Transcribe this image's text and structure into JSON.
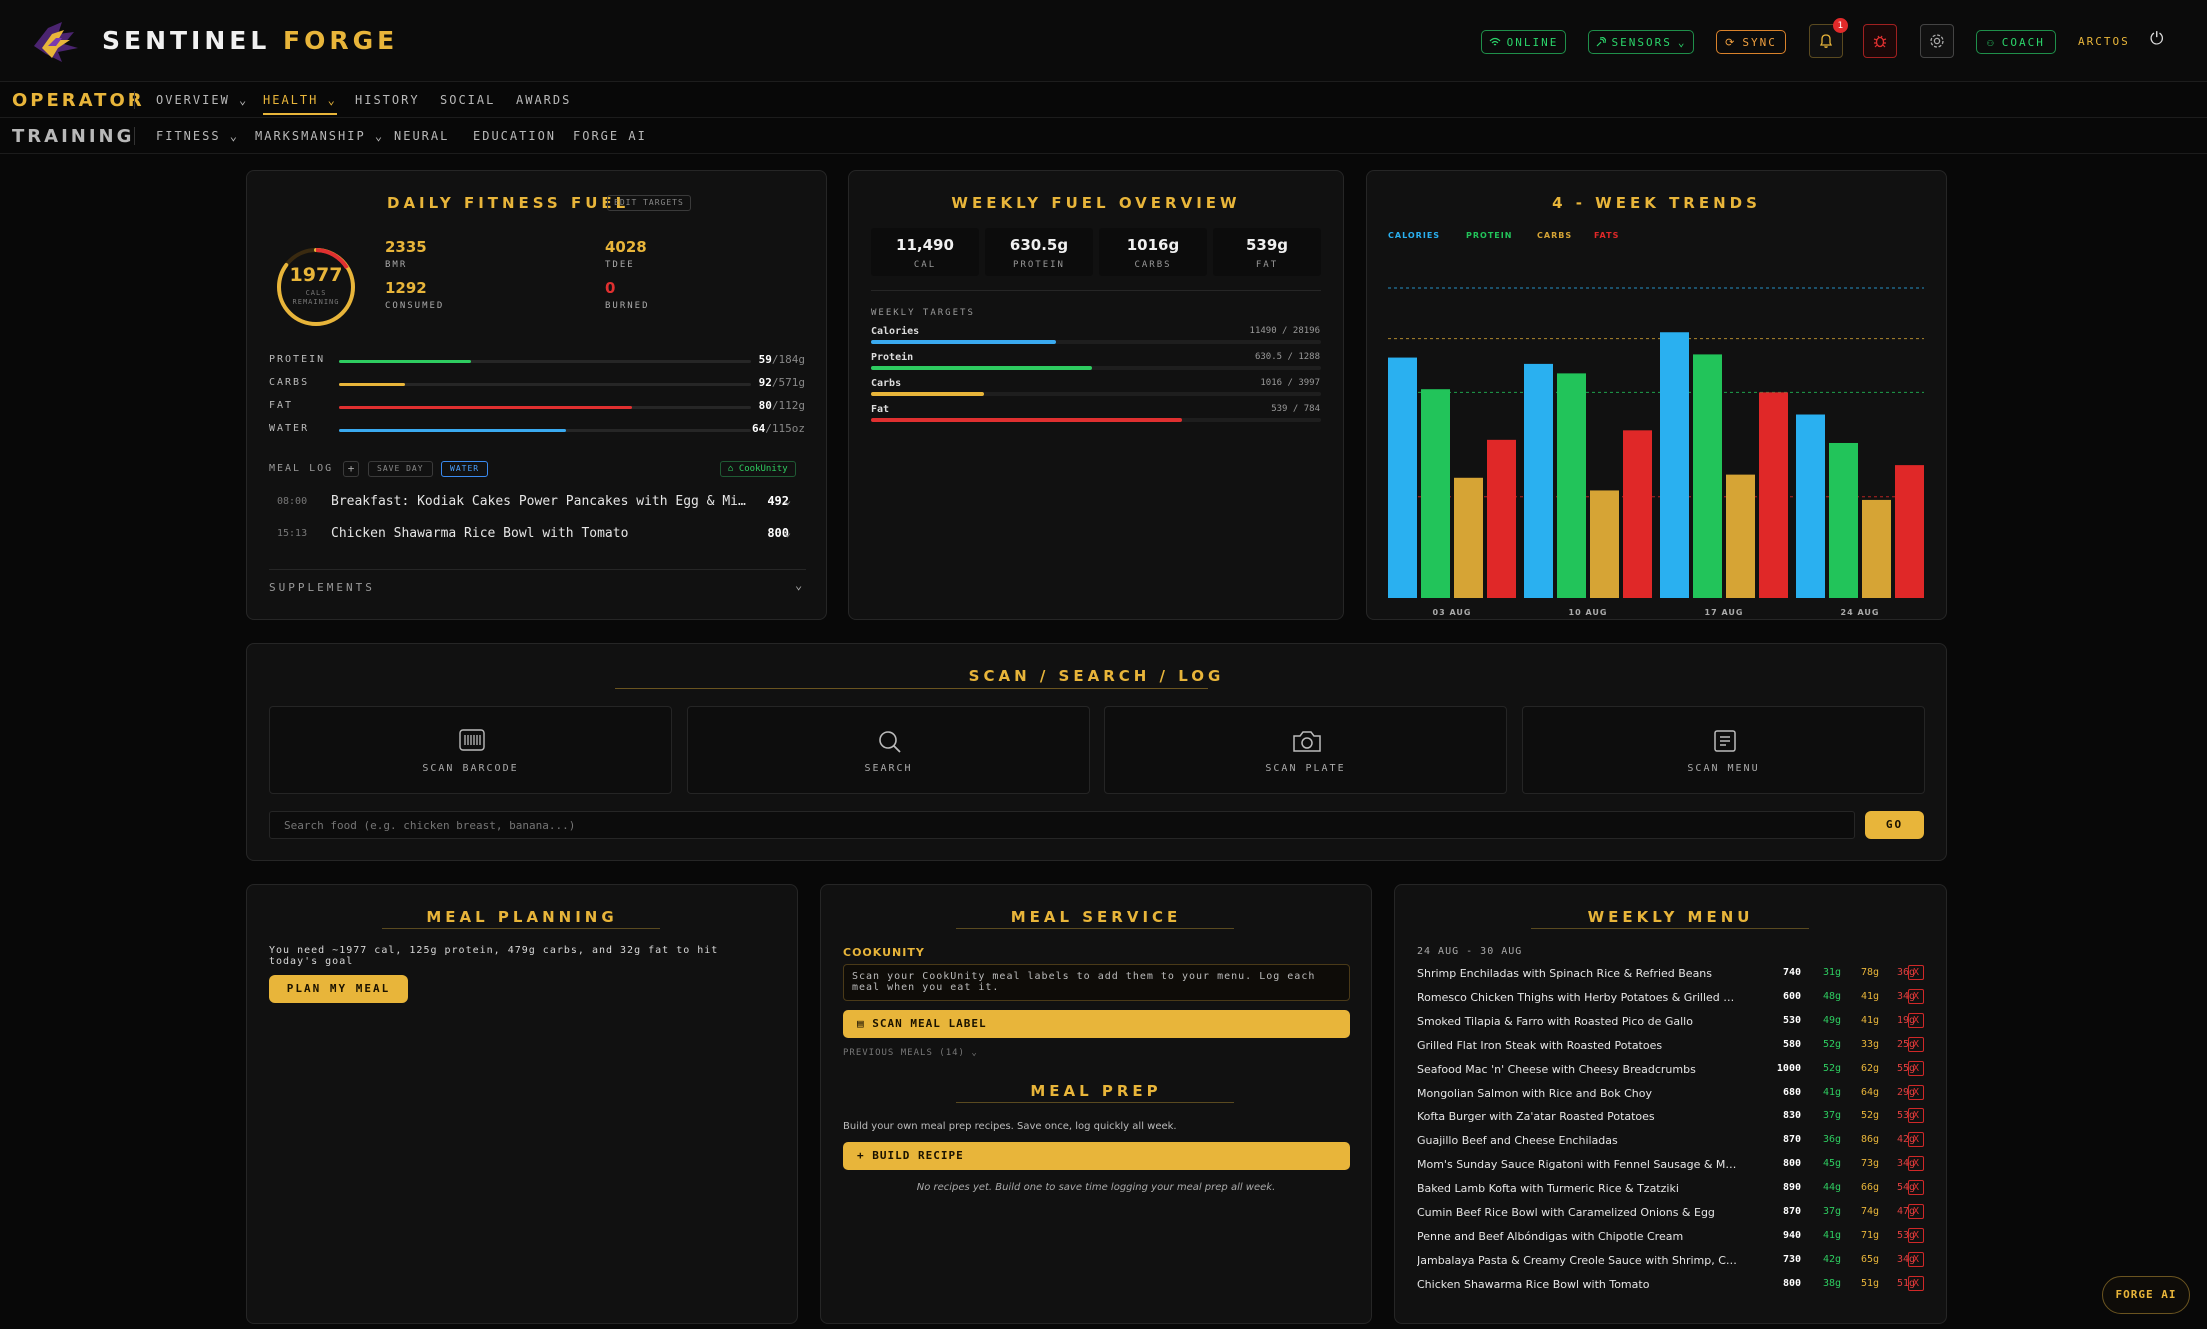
{
  "app": {
    "brand_a": "SENTINEL",
    "brand_b": "FORGE",
    "online": "ONLINE",
    "sensors": "SENSORS",
    "sync": "SYNC",
    "notif_count": "1",
    "coach": "COACH",
    "user": "ARCTOS"
  },
  "nav1": {
    "label": "OPERATOR",
    "items": [
      "OVERVIEW",
      "HEALTH",
      "HISTORY",
      "SOCIAL",
      "AWARDS"
    ],
    "active": "HEALTH"
  },
  "nav2": {
    "label": "TRAINING",
    "items": [
      "FITNESS",
      "MARKSMANSHIP",
      "NEURAL",
      "EDUCATION",
      "FORGE AI"
    ]
  },
  "daily": {
    "title": "DAILY FITNESS FUEL",
    "edit": "EDIT TARGETS",
    "remaining": "1977",
    "remaining_label": "CALS REMAINING",
    "ring_fraction": 0.85,
    "stats": [
      {
        "v": "2335",
        "l": "BMR",
        "color": "#e8b53a"
      },
      {
        "v": "4028",
        "l": "TDEE",
        "color": "#e8b53a"
      },
      {
        "v": "1292",
        "l": "CONSUMED",
        "color": "#e8b53a"
      },
      {
        "v": "0",
        "l": "BURNED",
        "color": "#e03030"
      }
    ],
    "macros": [
      {
        "l": "PROTEIN",
        "v": "59",
        "t": "/184g",
        "f": 0.32,
        "color": "#2ecc60"
      },
      {
        "l": "CARBS",
        "v": "92",
        "t": "/571g",
        "f": 0.16,
        "color": "#e8b53a"
      },
      {
        "l": "FAT",
        "v": "80",
        "t": "/112g",
        "f": 0.71,
        "color": "#e03030"
      },
      {
        "l": "WATER",
        "v": "64",
        "t": "/115oz",
        "f": 0.55,
        "color": "#3aaaf0"
      }
    ],
    "meal_log": "MEAL LOG",
    "add": "+",
    "save_day": "SAVE DAY",
    "water": "WATER",
    "cookunity": "CookUnity",
    "meals": [
      {
        "t": "08:00",
        "n": "Breakfast: Kodiak Cakes Power Pancakes with Egg & Mi…",
        "c": "492"
      },
      {
        "t": "15:13",
        "n": "Chicken Shawarma Rice Bowl with Tomato",
        "c": "800"
      }
    ],
    "supplements": "SUPPLEMENTS"
  },
  "weekly": {
    "title": "WEEKLY FUEL OVERVIEW",
    "totals": [
      {
        "v": "11,490",
        "l": "CAL"
      },
      {
        "v": "630.5g",
        "l": "PROTEIN"
      },
      {
        "v": "1016g",
        "l": "CARBS"
      },
      {
        "v": "539g",
        "l": "FAT"
      }
    ],
    "targets_label": "WEEKLY TARGETS",
    "targets": [
      {
        "l": "Calories",
        "r": "11490 / 28196",
        "f": 0.41,
        "color": "#3aaaf0"
      },
      {
        "l": "Protein",
        "r": "630.5 / 1288",
        "f": 0.49,
        "color": "#2ecc60"
      },
      {
        "l": "Carbs",
        "r": "1016 / 3997",
        "f": 0.25,
        "color": "#e8b53a"
      },
      {
        "l": "Fat",
        "r": "539 / 784",
        "f": 0.69,
        "color": "#e03030"
      }
    ]
  },
  "chart_data": {
    "type": "bar",
    "title": "4 - WEEK TRENDS",
    "categories": [
      "03 AUG",
      "10 AUG",
      "17 AUG",
      "24 AUG"
    ],
    "series": [
      {
        "name": "CALORIES",
        "values": [
          0.76,
          0.74,
          0.84,
          0.58
        ],
        "color": "#2ab0f0"
      },
      {
        "name": "PROTEIN",
        "values": [
          0.66,
          0.71,
          0.77,
          0.49
        ],
        "color": "#22c45a"
      },
      {
        "name": "CARBS",
        "values": [
          0.38,
          0.34,
          0.39,
          0.31
        ],
        "color": "#d6a435"
      },
      {
        "name": "FATS",
        "values": [
          0.5,
          0.53,
          0.65,
          0.42
        ],
        "color": "#e02828"
      }
    ],
    "ref_lines": [
      {
        "v": 0.98,
        "color": "#2ab0f0"
      },
      {
        "v": 0.82,
        "color": "#d6a435"
      },
      {
        "v": 0.65,
        "color": "#22c45a"
      },
      {
        "v": 0.32,
        "color": "#e02828"
      }
    ],
    "ylim": [
      0,
      1.1
    ]
  },
  "scan": {
    "title": "SCAN / SEARCH / LOG",
    "tiles": [
      "SCAN BARCODE",
      "SEARCH",
      "SCAN PLATE",
      "SCAN MENU"
    ],
    "placeholder": "Search food (e.g. chicken breast, banana...)",
    "go": "GO"
  },
  "planning": {
    "title": "MEAL PLANNING",
    "msg": "You need ~1977 cal, 125g protein, 479g carbs, and 32g fat to hit today's goal",
    "btn": "PLAN MY MEAL"
  },
  "service": {
    "title": "MEAL SERVICE",
    "cook": "COOKUNITY",
    "cook_msg": "Scan your CookUnity meal labels to add them to your menu. Log each meal when you eat it.",
    "scan_btn": "SCAN MEAL LABEL",
    "prev": "PREVIOUS MEALS (14)",
    "prep_title": "MEAL PREP",
    "prep_msg": "Build your own meal prep recipes. Save once, log quickly all week.",
    "build_btn": "BUILD RECIPE",
    "empty": "No recipes yet. Build one to save time logging your meal prep all week."
  },
  "menu": {
    "title": "WEEKLY MENU",
    "range": "24 AUG - 30 AUG",
    "rows": [
      {
        "n": "Shrimp Enchiladas with Spinach Rice & Refried Beans",
        "c": "740",
        "p": "31g",
        "cb": "78g",
        "f": "36g"
      },
      {
        "n": "Romesco Chicken Thighs with Herby Potatoes & Grilled …",
        "c": "600",
        "p": "48g",
        "cb": "41g",
        "f": "34g"
      },
      {
        "n": "Smoked Tilapia & Farro with Roasted Pico de Gallo",
        "c": "530",
        "p": "49g",
        "cb": "41g",
        "f": "19g"
      },
      {
        "n": "Grilled Flat Iron Steak with Roasted Potatoes",
        "c": "580",
        "p": "52g",
        "cb": "33g",
        "f": "25g"
      },
      {
        "n": "Seafood Mac 'n' Cheese with Cheesy Breadcrumbs",
        "c": "1000",
        "p": "52g",
        "cb": "62g",
        "f": "55g"
      },
      {
        "n": "Mongolian Salmon with Rice and Bok Choy",
        "c": "680",
        "p": "41g",
        "cb": "64g",
        "f": "29g"
      },
      {
        "n": "Kofta Burger with Za'atar Roasted Potatoes",
        "c": "830",
        "p": "37g",
        "cb": "52g",
        "f": "53g"
      },
      {
        "n": "Guajillo Beef and Cheese Enchiladas",
        "c": "870",
        "p": "36g",
        "cb": "86g",
        "f": "42g"
      },
      {
        "n": "Mom's Sunday Sauce Rigatoni with Fennel Sausage & Mea…",
        "c": "800",
        "p": "45g",
        "cb": "73g",
        "f": "34g"
      },
      {
        "n": "Baked Lamb Kofta with Turmeric Rice & Tzatziki",
        "c": "890",
        "p": "44g",
        "cb": "66g",
        "f": "54g"
      },
      {
        "n": "Cumin Beef Rice Bowl with Caramelized Onions & Egg",
        "c": "870",
        "p": "37g",
        "cb": "74g",
        "f": "47g"
      },
      {
        "n": "Penne and Beef Albóndigas with Chipotle Cream",
        "c": "940",
        "p": "41g",
        "cb": "71g",
        "f": "53g"
      },
      {
        "n": "Jambalaya Pasta & Creamy Creole Sauce with Shrimp, Ch…",
        "c": "730",
        "p": "42g",
        "cb": "65g",
        "f": "34g"
      },
      {
        "n": "Chicken Shawarma Rice Bowl with Tomato",
        "c": "800",
        "p": "38g",
        "cb": "51g",
        "f": "51g"
      }
    ]
  },
  "fab": "FORGE AI"
}
